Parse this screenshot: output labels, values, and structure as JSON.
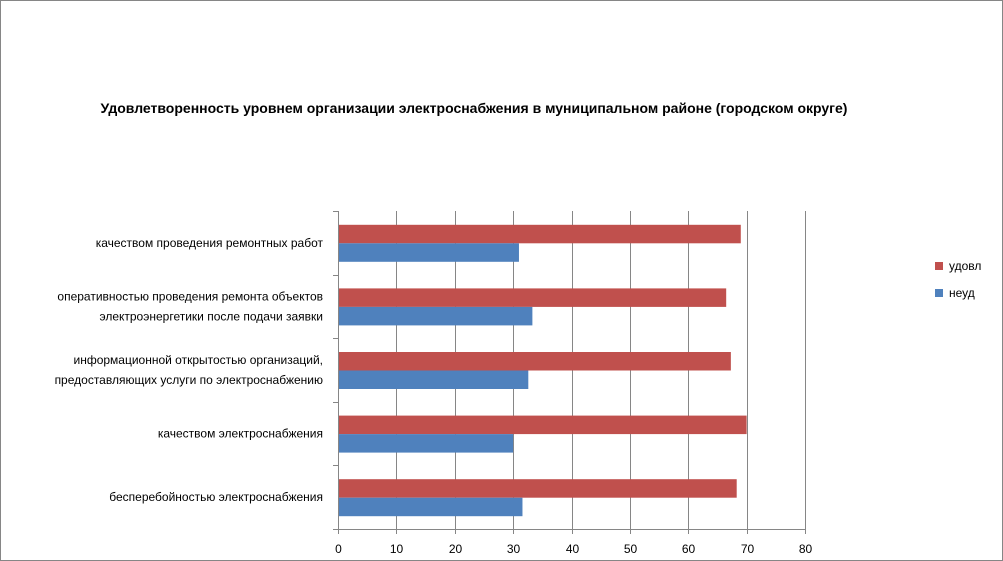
{
  "chart_data": {
    "type": "bar",
    "orientation": "horizontal",
    "title": "Удовлетворенность уровнем организации электроснабжения в муниципальном районе (городском округе)",
    "xlabel": "",
    "ylabel": "",
    "xlim": [
      0,
      80
    ],
    "x_ticks": [
      "0",
      "10",
      "20",
      "30",
      "40",
      "50",
      "60",
      "70",
      "80"
    ],
    "grid": true,
    "legend_position": "right",
    "categories": [
      [
        "качеством проведения ремонтных работ"
      ],
      [
        "оперативностью проведения ремонта объектов",
        "электроэнергетики после подачи заявки"
      ],
      [
        "информационной открытостью организаций,",
        "предоставляющих услуги по электроснабжению"
      ],
      [
        "качеством электроснабжения"
      ],
      [
        "бесперебойностью электроснабжения"
      ]
    ],
    "series": [
      {
        "name": "удовл",
        "color": "#C0504D",
        "values": [
          69,
          66.5,
          67.3,
          70,
          68.3
        ]
      },
      {
        "name": "неуд",
        "color": "#4F81BD",
        "values": [
          31,
          33.3,
          32.6,
          30,
          31.6
        ]
      }
    ]
  }
}
